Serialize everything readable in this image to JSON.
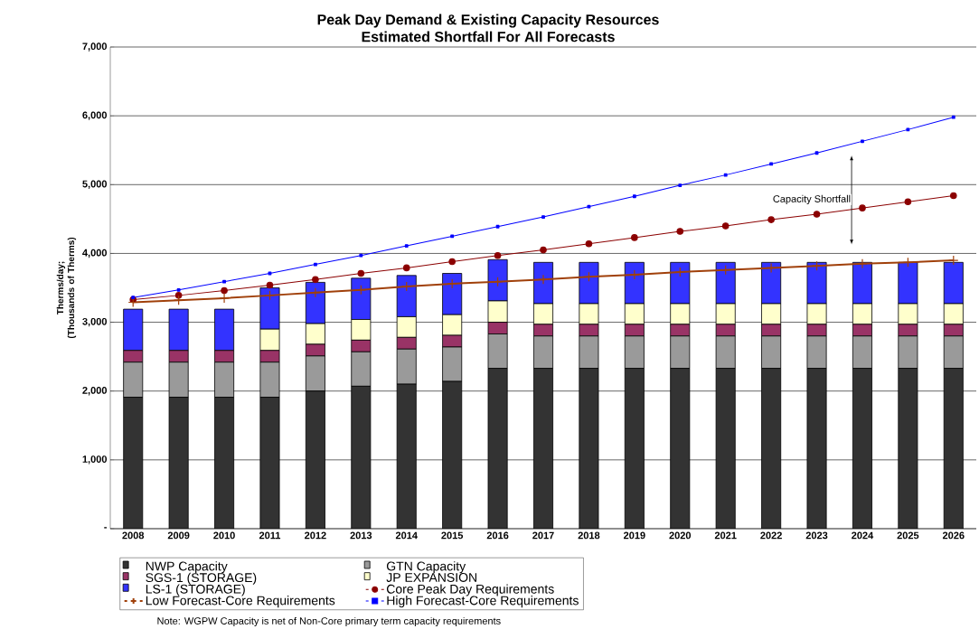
{
  "chart_data": {
    "type": "bar",
    "stacked": true,
    "title": "Peak Day Demand & Existing Capacity Resources",
    "subtitle": "Estimated Shortfall For All Forecasts",
    "ylabel": "Therms/day; (Thousands of Therms)",
    "categories": [
      "2008",
      "2009",
      "2010",
      "2011",
      "2012",
      "2013",
      "2014",
      "2015",
      "2016",
      "2017",
      "2018",
      "2019",
      "2020",
      "2021",
      "2022",
      "2023",
      "2024",
      "2025",
      "2026"
    ],
    "series": [
      {
        "name": "NWP Capacity",
        "color": "#333333",
        "values": [
          1910,
          1910,
          1910,
          1910,
          2000,
          2070,
          2100,
          2140,
          2330,
          2330,
          2330,
          2330,
          2330,
          2330,
          2330,
          2330,
          2330,
          2330,
          2330
        ]
      },
      {
        "name": "GTN Capacity",
        "color": "#9a9a9a",
        "values": [
          510,
          510,
          510,
          510,
          510,
          500,
          510,
          500,
          500,
          470,
          470,
          470,
          470,
          470,
          470,
          470,
          470,
          470,
          470
        ]
      },
      {
        "name": "SGS-1 (STORAGE)",
        "color": "#993366",
        "values": [
          170,
          170,
          170,
          170,
          170,
          170,
          170,
          170,
          170,
          170,
          170,
          170,
          170,
          170,
          170,
          170,
          170,
          170,
          170
        ]
      },
      {
        "name": "JP EXPANSION",
        "color": "#ffffcc",
        "values": [
          0,
          0,
          0,
          310,
          300,
          300,
          300,
          300,
          310,
          300,
          300,
          300,
          300,
          300,
          300,
          300,
          300,
          300,
          300
        ]
      },
      {
        "name": "LS-1 (STORAGE)",
        "color": "#3333ff",
        "values": [
          600,
          600,
          600,
          600,
          600,
          600,
          600,
          600,
          600,
          600,
          600,
          600,
          600,
          600,
          600,
          600,
          600,
          600,
          600
        ]
      },
      {
        "name": "Core Peak Day Requirements",
        "type": "line",
        "marker": "circle",
        "color": "#8b0000",
        "values": [
          3330,
          3390,
          3460,
          3540,
          3620,
          3710,
          3790,
          3880,
          3970,
          4050,
          4140,
          4230,
          4320,
          4400,
          4490,
          4570,
          4660,
          4750,
          4840
        ]
      },
      {
        "name": "Low Forecast-Core Requirements",
        "type": "line",
        "marker": "cross",
        "color": "#a0400a",
        "values": [
          3290,
          3320,
          3350,
          3390,
          3430,
          3470,
          3520,
          3560,
          3590,
          3620,
          3660,
          3690,
          3730,
          3760,
          3790,
          3820,
          3850,
          3870,
          3900
        ]
      },
      {
        "name": "High Forecast-Core Requirements",
        "type": "line",
        "marker": "square",
        "color": "#0000ff",
        "values": [
          3360,
          3470,
          3590,
          3710,
          3840,
          3970,
          4110,
          4250,
          4390,
          4530,
          4680,
          4830,
          4990,
          5140,
          5300,
          5460,
          5630,
          5800,
          5980
        ]
      }
    ],
    "ylim": [
      0,
      7000
    ],
    "yticks": [
      {
        "value": 0,
        "label": "-"
      },
      {
        "value": 1000,
        "label": "1,000"
      },
      {
        "value": 2000,
        "label": "2,000"
      },
      {
        "value": 3000,
        "label": "3,000"
      },
      {
        "value": 4000,
        "label": "4,000"
      },
      {
        "value": 5000,
        "label": "5,000"
      },
      {
        "value": 6000,
        "label": "6,000"
      },
      {
        "value": 7000,
        "label": "7,000"
      }
    ],
    "grid": "y",
    "legend": "bottom",
    "annotations": [
      "Capacity Shortfall",
      "Note: WGPW Capacity is net of Non-Core primary term capacity requirements"
    ]
  }
}
